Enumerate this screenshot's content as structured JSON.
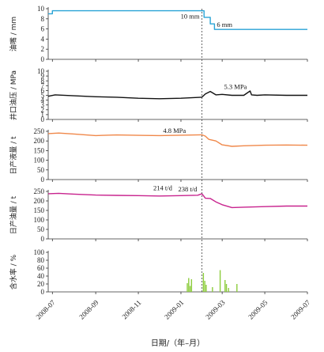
{
  "chart_data": {
    "type": "line",
    "x_axis": {
      "label": "日期/（年–月）",
      "ticks": [
        "2008-07",
        "2008-09",
        "2008-11",
        "2009-01",
        "2009-03",
        "2009-05",
        "2009-07"
      ],
      "range": [
        "2008-06-25",
        "2009-07-01"
      ]
    },
    "marker_date": "2009-01-31",
    "panels": [
      {
        "id": "choke",
        "type": "line",
        "ylabel": "油嘴 / mm",
        "ylim": [
          0,
          10
        ],
        "yticks": [
          "0",
          "2",
          "4",
          "6",
          "8",
          "10"
        ],
        "color": "#29a3d6",
        "series": [
          {
            "step": true,
            "x": [
              "2008-06-25",
              "2008-07-01",
              "2009-01-31",
              "2009-02-03",
              "2009-02-12",
              "2009-02-18",
              "2009-07-01"
            ],
            "y": [
              9,
              9.6,
              9.6,
              8.3,
              7.0,
              5.9,
              5.9
            ]
          }
        ],
        "annotations": [
          {
            "text": "10 mm",
            "x": "2009-01-31",
            "y": 9.6,
            "side": "left"
          },
          {
            "text": "6 mm",
            "x": "2009-02-18",
            "y": 5.9,
            "side": "right"
          }
        ]
      },
      {
        "id": "tubing-pressure",
        "type": "line",
        "ylabel": "井口油压 / MPa",
        "ylim": [
          0,
          10
        ],
        "yticks": [
          "0",
          "1",
          "2",
          "3",
          "4",
          "5",
          "6",
          "7",
          "8",
          "9",
          "10"
        ],
        "color": "#111111",
        "series": [
          {
            "x": [
              "2008-06-25",
              "2008-07-05",
              "2008-08-01",
              "2008-09-01",
              "2008-10-01",
              "2008-11-01",
              "2008-12-01",
              "2009-01-01",
              "2009-01-31",
              "2009-02-05",
              "2009-02-12",
              "2009-02-20",
              "2009-03-01",
              "2009-03-15",
              "2009-04-01",
              "2009-04-10",
              "2009-04-12",
              "2009-04-20",
              "2009-05-01",
              "2009-06-01",
              "2009-07-01"
            ],
            "y": [
              4.8,
              5.1,
              4.9,
              4.7,
              4.6,
              4.4,
              4.3,
              4.4,
              4.6,
              5.3,
              5.8,
              5.1,
              5.2,
              5.0,
              5.0,
              5.9,
              5.1,
              5.0,
              5.1,
              5.0,
              5.0
            ]
          }
        ],
        "annotations": [
          {
            "text": "5.3 MPa",
            "x": "2009-03-15",
            "y": 5.3,
            "side": "above"
          }
        ]
      },
      {
        "id": "liquid-rate",
        "type": "line",
        "ylabel": "日产液量 / t",
        "ylim": [
          0,
          250
        ],
        "yticks": [
          "0",
          "50",
          "100",
          "150",
          "200",
          "250"
        ],
        "color": "#f0884a",
        "series": [
          {
            "x": [
              "2008-06-25",
              "2008-07-10",
              "2008-08-01",
              "2008-09-01",
              "2008-10-01",
              "2008-11-01",
              "2008-12-01",
              "2009-01-01",
              "2009-01-31",
              "2009-02-05",
              "2009-02-10",
              "2009-02-20",
              "2009-03-01",
              "2009-03-15",
              "2009-04-01",
              "2009-05-01",
              "2009-06-01",
              "2009-07-01"
            ],
            "y": [
              238,
              241,
              236,
              228,
              231,
              229,
              228,
              230,
              232,
              225,
              208,
              200,
              180,
              172,
              175,
              178,
              179,
              178
            ]
          }
        ],
        "annotations": [
          {
            "text": "4.8 MPa",
            "x": "2009-01-15",
            "y": 200,
            "side": "below"
          }
        ]
      },
      {
        "id": "oil-rate",
        "type": "line",
        "ylabel": "日产油量 / t",
        "ylim": [
          0,
          250
        ],
        "yticks": [
          "0",
          "50",
          "100",
          "150",
          "200",
          "250"
        ],
        "color": "#c8238e",
        "series": [
          {
            "x": [
              "2008-06-25",
              "2008-07-10",
              "2008-08-01",
              "2008-09-01",
              "2008-10-01",
              "2008-11-01",
              "2008-12-01",
              "2009-01-01",
              "2009-01-25",
              "2009-01-31",
              "2009-02-05",
              "2009-02-12",
              "2009-02-20",
              "2009-03-01",
              "2009-03-15",
              "2009-04-01",
              "2009-05-01",
              "2009-06-01",
              "2009-07-01"
            ],
            "y": [
              238,
              240,
              236,
              231,
              229,
              228,
              226,
              228,
              230,
              238,
              214,
              213,
              195,
              180,
              165,
              167,
              170,
              173,
              173
            ]
          }
        ],
        "annotations": [
          {
            "text": "238 t/d",
            "x": "2009-01-31",
            "y": 238,
            "side": "left-above"
          },
          {
            "text": "214 t/d",
            "x": "2009-01-01",
            "y": 214,
            "side": "below"
          }
        ]
      },
      {
        "id": "water-cut",
        "type": "bar",
        "ylabel": "含水率 / %",
        "ylim": [
          0,
          100
        ],
        "yticks": [
          "0",
          "20",
          "40",
          "60",
          "80",
          "100"
        ],
        "color": "#8ccc3c",
        "series": [
          {
            "x": [
              "2009-01-10",
              "2009-01-12",
              "2009-01-14",
              "2009-01-16",
              "2009-02-02",
              "2009-02-04",
              "2009-02-06",
              "2009-02-15",
              "2009-02-26",
              "2009-03-05",
              "2009-03-07",
              "2009-03-10",
              "2009-03-22"
            ],
            "y": [
              22,
              35,
              15,
              32,
              48,
              28,
              18,
              12,
              55,
              30,
              20,
              10,
              20
            ]
          }
        ]
      }
    ]
  }
}
